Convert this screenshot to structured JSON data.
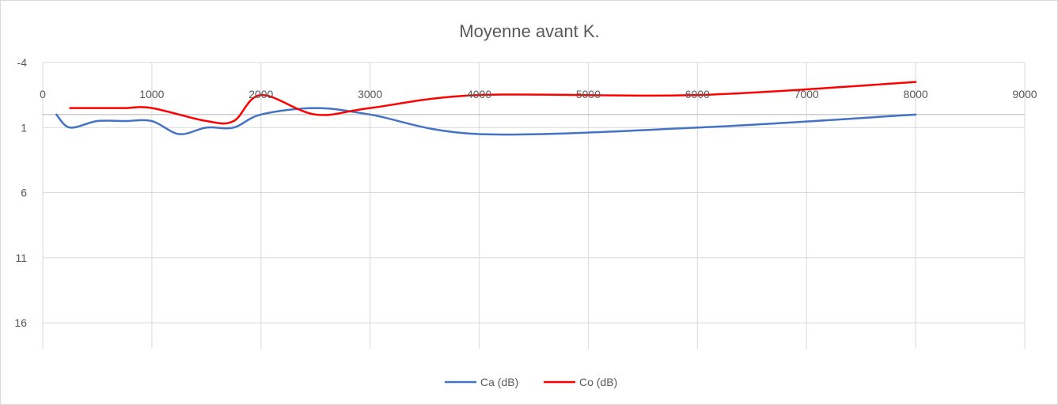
{
  "chart_data": {
    "type": "line",
    "title": "Moyenne avant K.",
    "xlabel": "",
    "ylabel": "",
    "xlim": [
      0,
      9000
    ],
    "ylim": [
      -4,
      18
    ],
    "y_reversed": true,
    "x_ticks": [
      "0",
      "1000",
      "2000",
      "3000",
      "4000",
      "5000",
      "6000",
      "7000",
      "8000",
      "9000"
    ],
    "y_ticks": [
      "-4",
      "1",
      "6",
      "11",
      "16"
    ],
    "y_tick_values": [
      -4,
      1,
      6,
      11,
      16
    ],
    "grid": true,
    "smooth": true,
    "legend_position": "bottom",
    "series": [
      {
        "name": "Ca (dB)",
        "color": "#4472C4",
        "points": [
          [
            125,
            0
          ],
          [
            250,
            1
          ],
          [
            500,
            0.5
          ],
          [
            750,
            0.5
          ],
          [
            1000,
            0.5
          ],
          [
            1250,
            1.5
          ],
          [
            1500,
            1
          ],
          [
            1750,
            1
          ],
          [
            2000,
            0
          ],
          [
            2500,
            -0.5
          ],
          [
            3000,
            0
          ],
          [
            4000,
            1.5
          ],
          [
            6000,
            1
          ],
          [
            8000,
            0
          ]
        ]
      },
      {
        "name": "Co (dB)",
        "color": "#FF0000",
        "points": [
          [
            250,
            -0.5
          ],
          [
            500,
            -0.5
          ],
          [
            750,
            -0.5
          ],
          [
            1000,
            -0.5
          ],
          [
            1500,
            0.5
          ],
          [
            1750,
            0.5
          ],
          [
            2000,
            -1.5
          ],
          [
            2500,
            0
          ],
          [
            3000,
            -0.5
          ],
          [
            4000,
            -1.5
          ],
          [
            6000,
            -1.5
          ],
          [
            8000,
            -2.5
          ]
        ]
      }
    ]
  }
}
